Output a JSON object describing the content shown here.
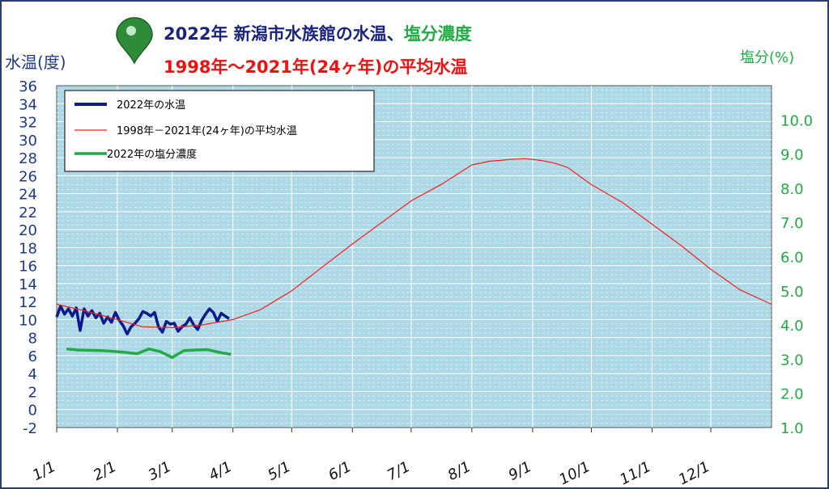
{
  "title": {
    "line1_part1": "2022年 新潟市水族館の水温、",
    "line1_part2": "塩分濃度",
    "line2": "1998年～2021年(24ヶ年)の平均水温"
  },
  "axis": {
    "left_label": "水温(度)",
    "right_label": "塩分(%)"
  },
  "legend": {
    "items": [
      "2022年の水温",
      "1998年－2021年(24ヶ年)の平均水温",
      "2022年の塩分濃度"
    ]
  },
  "colors": {
    "plot_bg": "#add8e6",
    "water_2022": "#0d1a8c",
    "avg_water": "#ff1a1a",
    "salinity": "#22aa44",
    "left_axis_text": "#1f3a8a",
    "right_axis_text": "#22aa44",
    "title_blue": "#1a237e",
    "title_green": "#22aa44",
    "title_red": "#ee1111"
  },
  "chart_data": {
    "type": "line",
    "x_unit": "day_of_year",
    "xlim": [
      1,
      366
    ],
    "month_ticks": [
      {
        "label": "1/1",
        "day": 1
      },
      {
        "label": "2/1",
        "day": 32
      },
      {
        "label": "3/1",
        "day": 60
      },
      {
        "label": "4/1",
        "day": 91
      },
      {
        "label": "5/1",
        "day": 121
      },
      {
        "label": "6/1",
        "day": 152
      },
      {
        "label": "7/1",
        "day": 182
      },
      {
        "label": "8/1",
        "day": 213
      },
      {
        "label": "9/1",
        "day": 244
      },
      {
        "label": "10/1",
        "day": 274
      },
      {
        "label": "11/1",
        "day": 305
      },
      {
        "label": "12/1",
        "day": 335
      }
    ],
    "y_left": {
      "label": "水温(度)",
      "min": -2,
      "max": 36,
      "ticks": [
        -2,
        0,
        2,
        4,
        6,
        8,
        10,
        12,
        14,
        16,
        18,
        20,
        22,
        24,
        26,
        28,
        30,
        32,
        34,
        36
      ]
    },
    "y_right": {
      "label": "塩分(%)",
      "min": 1.0,
      "max": 11.0,
      "ticks": [
        "1.0",
        "2.0",
        "3.0",
        "4.0",
        "5.0",
        "6.0",
        "7.0",
        "8.0",
        "9.0",
        "10.0"
      ]
    },
    "grid": true,
    "legend_position": "top-left",
    "series": [
      {
        "name": "2022年の水温",
        "axis": "left",
        "x": [
          1,
          3,
          5,
          7,
          9,
          11,
          13,
          15,
          17,
          19,
          21,
          23,
          25,
          27,
          29,
          31,
          33,
          35,
          37,
          39,
          41,
          43,
          45,
          47,
          49,
          51,
          53,
          55,
          57,
          59,
          61,
          63,
          65,
          67,
          69,
          71,
          73,
          75,
          77,
          79,
          81,
          83,
          85,
          87,
          89
        ],
        "y": [
          10.3,
          11.5,
          10.6,
          11.2,
          10.4,
          11.3,
          8.8,
          11.2,
          10.4,
          11.0,
          10.2,
          10.7,
          9.6,
          10.3,
          9.7,
          10.8,
          9.9,
          9.3,
          8.4,
          9.2,
          9.6,
          10.1,
          10.9,
          10.7,
          10.4,
          10.8,
          9.2,
          8.6,
          9.8,
          9.5,
          9.6,
          8.7,
          9.2,
          9.5,
          10.2,
          9.4,
          8.9,
          9.9,
          10.6,
          11.2,
          10.8,
          9.8,
          10.7,
          10.4,
          10.1
        ]
      },
      {
        "name": "1998年－2021年(24ヶ年)の平均水温",
        "axis": "left",
        "x": [
          1,
          15,
          32,
          45,
          60,
          75,
          91,
          105,
          121,
          137,
          152,
          167,
          182,
          198,
          213,
          222,
          228,
          232,
          240,
          248,
          255,
          262,
          274,
          290,
          305,
          320,
          335,
          350,
          366
        ],
        "y": [
          11.7,
          11.0,
          10.0,
          9.2,
          9.1,
          9.4,
          10.0,
          11.1,
          13.2,
          15.9,
          18.4,
          20.8,
          23.2,
          25.1,
          27.2,
          27.6,
          27.7,
          27.8,
          27.9,
          27.7,
          27.4,
          26.9,
          25.0,
          23.0,
          20.6,
          18.2,
          15.6,
          13.3,
          11.7
        ]
      },
      {
        "name": "2022年の塩分濃度",
        "axis": "right",
        "x": [
          6,
          12,
          18,
          24,
          30,
          36,
          42,
          48,
          54,
          60,
          66,
          72,
          78,
          84,
          90
        ],
        "y": [
          3.3,
          3.27,
          3.26,
          3.25,
          3.23,
          3.2,
          3.16,
          3.3,
          3.22,
          3.05,
          3.25,
          3.27,
          3.28,
          3.2,
          3.14
        ]
      }
    ]
  }
}
